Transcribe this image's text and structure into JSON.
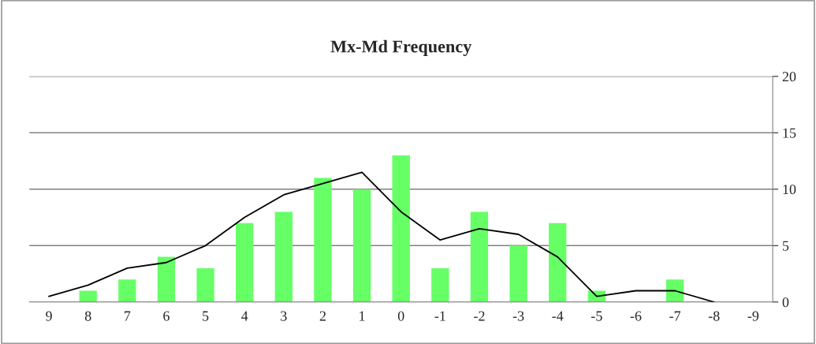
{
  "chart_data": {
    "type": "bar",
    "title": "Mx-Md Frequency",
    "categories": [
      "9",
      "8",
      "7",
      "6",
      "5",
      "4",
      "3",
      "2",
      "1",
      "0",
      "-1",
      "-2",
      "-3",
      "-4",
      "-5",
      "-6",
      "-7",
      "-8",
      "-9"
    ],
    "series": [
      {
        "color": "#66ff66",
        "values": [
          0,
          1,
          2,
          4,
          3,
          7,
          8,
          11,
          10,
          13,
          3,
          8,
          5,
          7,
          1,
          0,
          2,
          0,
          0
        ],
        "axis": "y2"
      },
      {
        "type": "line",
        "color": "#000000",
        "values": [
          0.5,
          1.5,
          3,
          3.5,
          5,
          7.5,
          9.5,
          10.5,
          11.5,
          8,
          5.5,
          6.5,
          6,
          4,
          0.5,
          1,
          1,
          0,
          null
        ],
        "axis": "y2"
      }
    ],
    "y2lim": [
      0,
      20
    ],
    "y2ticks": [
      0,
      5,
      10,
      15,
      20
    ],
    "grid": "y",
    "legend": false
  }
}
